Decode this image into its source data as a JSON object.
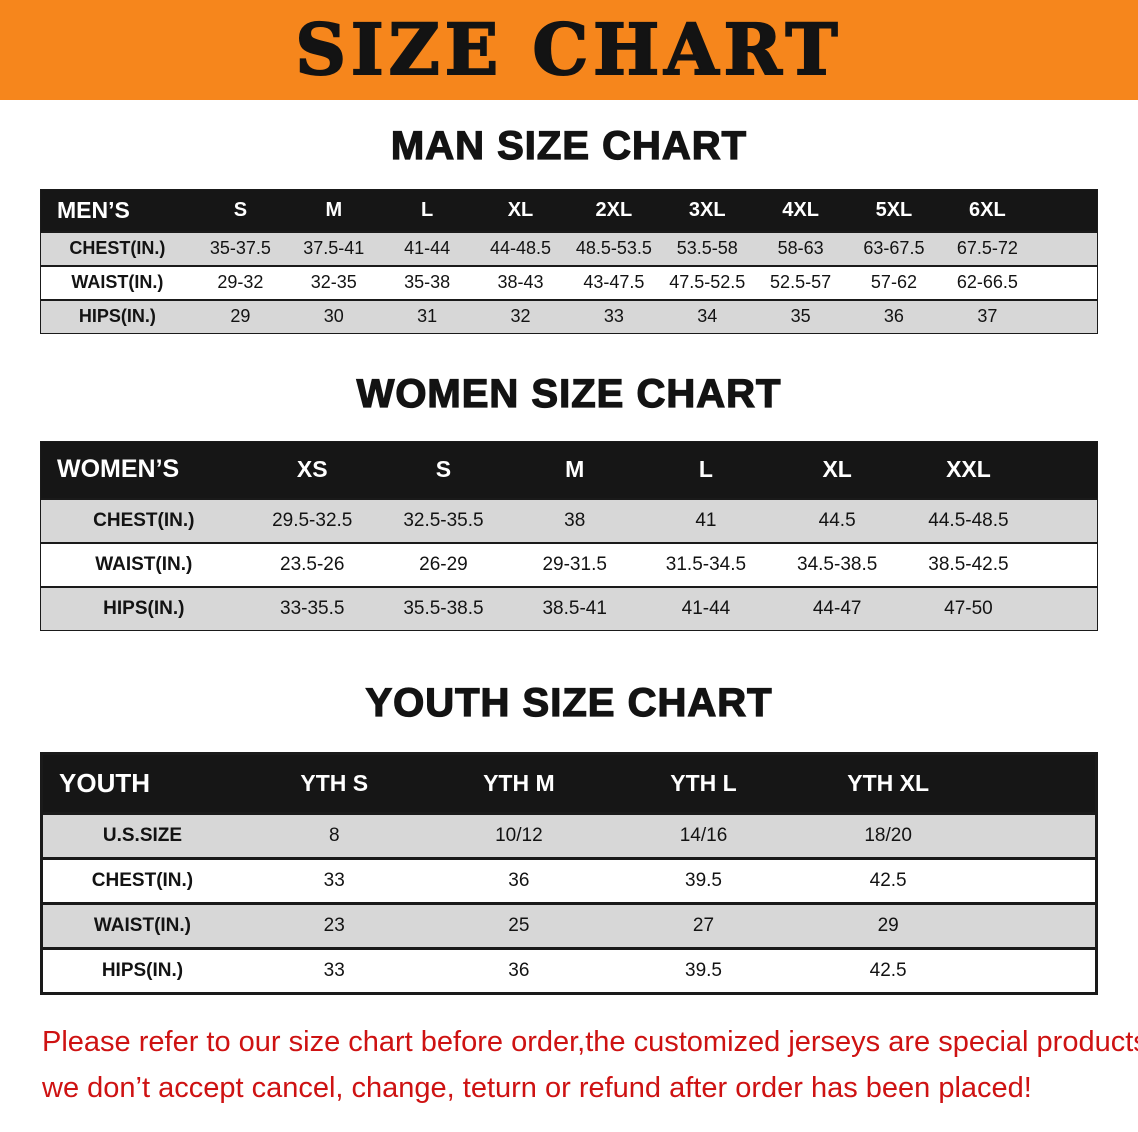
{
  "banner": {
    "title": "SIZE CHART"
  },
  "colors": {
    "banner_bg": "#f6861c",
    "header_bg": "#161616",
    "row_alt": "#d7d7d7",
    "text": "#131313",
    "disclaimer": "#ce1212"
  },
  "sections": [
    {
      "heading": "MAN SIZE CHART",
      "table": {
        "header": [
          "MEN’S",
          "S",
          "M",
          "L",
          "XL",
          "2XL",
          "3XL",
          "4XL",
          "5XL",
          "6XL"
        ],
        "rows": [
          [
            "CHEST(IN.)",
            "35-37.5",
            "37.5-41",
            "41-44",
            "44-48.5",
            "48.5-53.5",
            "53.5-58",
            "58-63",
            "63-67.5",
            "67.5-72"
          ],
          [
            "WAIST(IN.)",
            "29-32",
            "32-35",
            "35-38",
            "38-43",
            "43-47.5",
            "47.5-52.5",
            "52.5-57",
            "57-62",
            "62-66.5"
          ],
          [
            "HIPS(IN.)",
            "29",
            "30",
            "31",
            "32",
            "33",
            "34",
            "35",
            "36",
            "37"
          ]
        ]
      }
    },
    {
      "heading": "WOMEN SIZE CHART",
      "table": {
        "header": [
          "WOMEN’S",
          "XS",
          "S",
          "M",
          "L",
          "XL",
          "XXL"
        ],
        "rows": [
          [
            "CHEST(IN.)",
            "29.5-32.5",
            "32.5-35.5",
            "38",
            "41",
            "44.5",
            "44.5-48.5"
          ],
          [
            "WAIST(IN.)",
            "23.5-26",
            "26-29",
            "29-31.5",
            "31.5-34.5",
            "34.5-38.5",
            "38.5-42.5"
          ],
          [
            "HIPS(IN.)",
            "33-35.5",
            "35.5-38.5",
            "38.5-41",
            "41-44",
            "44-47",
            "47-50"
          ]
        ]
      }
    },
    {
      "heading": "YOUTH SIZE CHART",
      "table": {
        "header": [
          "YOUTH",
          "YTH S",
          "YTH M",
          "YTH L",
          "YTH XL"
        ],
        "rows": [
          [
            "U.S.SIZE",
            "8",
            "10/12",
            "14/16",
            "18/20"
          ],
          [
            "CHEST(IN.)",
            "33",
            "36",
            "39.5",
            "42.5"
          ],
          [
            "WAIST(IN.)",
            "23",
            "25",
            "27",
            "29"
          ],
          [
            "HIPS(IN.)",
            "33",
            "36",
            "39.5",
            "42.5"
          ]
        ]
      }
    }
  ],
  "disclaimer": {
    "line1": "Please refer to our size chart before order,the customized jerseys are special products,",
    "line2": "we don’t accept cancel, change, teturn or refund after order has been placed!"
  }
}
